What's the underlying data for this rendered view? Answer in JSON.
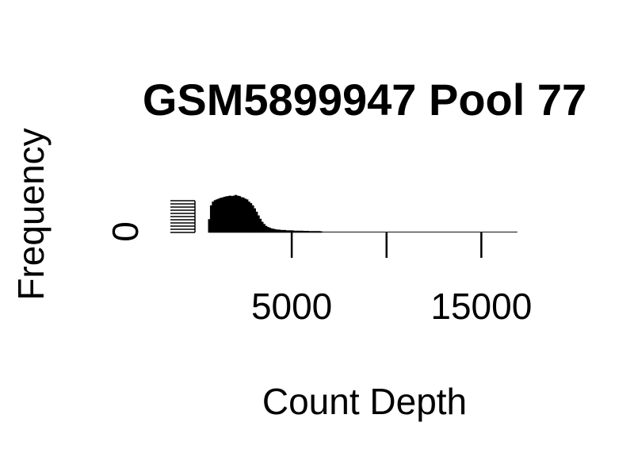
{
  "chart_data": {
    "type": "bar",
    "title": "GSM5899947 Pool 77",
    "xlabel": "Count Depth",
    "ylabel": "Frequency",
    "xlim": [
      -1400,
      17200
    ],
    "x_ticks": [
      {
        "value": 5000,
        "label": "5000"
      },
      {
        "value": 10000,
        "label": ""
      },
      {
        "value": 15000,
        "label": "15000"
      }
    ],
    "y_ticks": [
      {
        "value": 0,
        "label": "0"
      }
    ],
    "ylim": [
      0,
      1
    ],
    "bins": {
      "start": 600,
      "width": 100,
      "counts": [
        0.35,
        0.72,
        0.82,
        0.86,
        0.88,
        0.9,
        0.92,
        0.93,
        0.95,
        0.96,
        0.97,
        0.98,
        0.97,
        0.98,
        1.0,
        0.98,
        0.97,
        0.94,
        0.93,
        0.9,
        0.88,
        0.82,
        0.78,
        0.72,
        0.64,
        0.55,
        0.45,
        0.36,
        0.28,
        0.22,
        0.17,
        0.14,
        0.12,
        0.1,
        0.09,
        0.08,
        0.07,
        0.07,
        0.06,
        0.06,
        0.06,
        0.05,
        0.05,
        0.05,
        0.05,
        0.04,
        0.04,
        0.04,
        0.04,
        0.04,
        0.035,
        0.035,
        0.035,
        0.03,
        0.03,
        0.03,
        0.03,
        0.03,
        0.03,
        0.025
      ],
      "tail_end": 16900,
      "tail_count": 0.02
    }
  }
}
